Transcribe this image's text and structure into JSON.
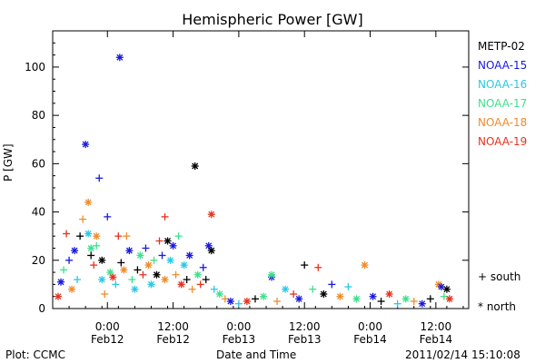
{
  "chart_data": {
    "type": "scatter",
    "title": "Hemispheric Power [GW]",
    "ylabel": "P [GW]",
    "xlabel": "Date and Time",
    "ylim": [
      0,
      115
    ],
    "xlim": [
      "2011-02-11T14:00",
      "2011-02-14T18:00"
    ],
    "y_ticks": [
      0,
      20,
      40,
      60,
      80,
      100
    ],
    "x_ticks": [
      {
        "time": "2011-02-12T00:00",
        "label1": "0:00",
        "label2": "Feb12"
      },
      {
        "time": "2011-02-12T12:00",
        "label1": "12:00",
        "label2": "Feb12"
      },
      {
        "time": "2011-02-13T00:00",
        "label1": "0:00",
        "label2": "Feb13"
      },
      {
        "time": "2011-02-13T12:00",
        "label1": "12:00",
        "label2": "Feb13"
      },
      {
        "time": "2011-02-14T00:00",
        "label1": "0:00",
        "label2": "Feb14"
      },
      {
        "time": "2011-02-14T12:00",
        "label1": "12:00",
        "label2": "Feb14"
      }
    ],
    "series": [
      {
        "name": "METP-02",
        "color": "#000000"
      },
      {
        "name": "NOAA-15",
        "color": "#1a1adc"
      },
      {
        "name": "NOAA-16",
        "color": "#2bc8e6"
      },
      {
        "name": "NOAA-17",
        "color": "#3ee08c"
      },
      {
        "name": "NOAA-18",
        "color": "#f08c2a"
      },
      {
        "name": "NOAA-19",
        "color": "#e8321e"
      }
    ],
    "markers": {
      "south": "+",
      "north": "*"
    },
    "marker_legend": {
      "south_label": "+ south",
      "north_label": "* north"
    },
    "points": [
      {
        "t": "2011-02-11T15:30",
        "v": 11,
        "s": 1,
        "m": "n"
      },
      {
        "t": "2011-02-11T15:00",
        "v": 5,
        "s": 5,
        "m": "n"
      },
      {
        "t": "2011-02-11T16:00",
        "v": 16,
        "s": 3,
        "m": "s"
      },
      {
        "t": "2011-02-11T16:30",
        "v": 31,
        "s": 5,
        "m": "s"
      },
      {
        "t": "2011-02-11T17:00",
        "v": 20,
        "s": 1,
        "m": "s"
      },
      {
        "t": "2011-02-11T17:30",
        "v": 8,
        "s": 4,
        "m": "n"
      },
      {
        "t": "2011-02-11T18:00",
        "v": 24,
        "s": 1,
        "m": "n"
      },
      {
        "t": "2011-02-11T18:30",
        "v": 12,
        "s": 2,
        "m": "s"
      },
      {
        "t": "2011-02-11T19:00",
        "v": 30,
        "s": 0,
        "m": "s"
      },
      {
        "t": "2011-02-11T19:30",
        "v": 37,
        "s": 4,
        "m": "s"
      },
      {
        "t": "2011-02-11T20:00",
        "v": 68,
        "s": 1,
        "m": "n"
      },
      {
        "t": "2011-02-11T20:30",
        "v": 44,
        "s": 4,
        "m": "n"
      },
      {
        "t": "2011-02-11T20:30",
        "v": 31,
        "s": 2,
        "m": "n"
      },
      {
        "t": "2011-02-11T21:00",
        "v": 25,
        "s": 3,
        "m": "n"
      },
      {
        "t": "2011-02-11T21:00",
        "v": 22,
        "s": 0,
        "m": "s"
      },
      {
        "t": "2011-02-11T21:30",
        "v": 18,
        "s": 5,
        "m": "s"
      },
      {
        "t": "2011-02-11T22:00",
        "v": 30,
        "s": 4,
        "m": "n"
      },
      {
        "t": "2011-02-11T22:00",
        "v": 26,
        "s": 3,
        "m": "s"
      },
      {
        "t": "2011-02-11T22:30",
        "v": 54,
        "s": 1,
        "m": "s"
      },
      {
        "t": "2011-02-11T23:00",
        "v": 20,
        "s": 0,
        "m": "n"
      },
      {
        "t": "2011-02-11T23:00",
        "v": 12,
        "s": 2,
        "m": "n"
      },
      {
        "t": "2011-02-11T23:30",
        "v": 6,
        "s": 4,
        "m": "s"
      },
      {
        "t": "2011-02-12T00:00",
        "v": 38,
        "s": 1,
        "m": "s"
      },
      {
        "t": "2011-02-12T00:30",
        "v": 15,
        "s": 3,
        "m": "n"
      },
      {
        "t": "2011-02-12T01:00",
        "v": 13,
        "s": 5,
        "m": "n"
      },
      {
        "t": "2011-02-12T01:30",
        "v": 10,
        "s": 2,
        "m": "s"
      },
      {
        "t": "2011-02-12T02:00",
        "v": 30,
        "s": 5,
        "m": "s"
      },
      {
        "t": "2011-02-12T02:15",
        "v": 104,
        "s": 1,
        "m": "n"
      },
      {
        "t": "2011-02-12T02:30",
        "v": 19,
        "s": 0,
        "m": "s"
      },
      {
        "t": "2011-02-12T03:00",
        "v": 16,
        "s": 4,
        "m": "n"
      },
      {
        "t": "2011-02-12T03:30",
        "v": 30,
        "s": 4,
        "m": "s"
      },
      {
        "t": "2011-02-12T04:00",
        "v": 24,
        "s": 1,
        "m": "n"
      },
      {
        "t": "2011-02-12T04:30",
        "v": 12,
        "s": 3,
        "m": "s"
      },
      {
        "t": "2011-02-12T05:00",
        "v": 8,
        "s": 2,
        "m": "n"
      },
      {
        "t": "2011-02-12T05:30",
        "v": 16,
        "s": 0,
        "m": "s"
      },
      {
        "t": "2011-02-12T06:00",
        "v": 22,
        "s": 3,
        "m": "n"
      },
      {
        "t": "2011-02-12T06:30",
        "v": 14,
        "s": 5,
        "m": "s"
      },
      {
        "t": "2011-02-12T07:00",
        "v": 25,
        "s": 1,
        "m": "s"
      },
      {
        "t": "2011-02-12T07:30",
        "v": 18,
        "s": 4,
        "m": "n"
      },
      {
        "t": "2011-02-12T08:00",
        "v": 10,
        "s": 2,
        "m": "n"
      },
      {
        "t": "2011-02-12T08:30",
        "v": 20,
        "s": 3,
        "m": "s"
      },
      {
        "t": "2011-02-12T09:00",
        "v": 14,
        "s": 0,
        "m": "n"
      },
      {
        "t": "2011-02-12T09:30",
        "v": 28,
        "s": 5,
        "m": "s"
      },
      {
        "t": "2011-02-12T10:00",
        "v": 22,
        "s": 1,
        "m": "s"
      },
      {
        "t": "2011-02-12T10:30",
        "v": 38,
        "s": 5,
        "m": "s"
      },
      {
        "t": "2011-02-12T10:30",
        "v": 12,
        "s": 4,
        "m": "n"
      },
      {
        "t": "2011-02-12T11:00",
        "v": 28,
        "s": 0,
        "m": "n"
      },
      {
        "t": "2011-02-12T11:30",
        "v": 20,
        "s": 2,
        "m": "n"
      },
      {
        "t": "2011-02-12T12:00",
        "v": 26,
        "s": 1,
        "m": "n"
      },
      {
        "t": "2011-02-12T12:30",
        "v": 14,
        "s": 4,
        "m": "s"
      },
      {
        "t": "2011-02-12T13:00",
        "v": 30,
        "s": 3,
        "m": "s"
      },
      {
        "t": "2011-02-12T13:30",
        "v": 10,
        "s": 5,
        "m": "n"
      },
      {
        "t": "2011-02-12T14:00",
        "v": 18,
        "s": 2,
        "m": "n"
      },
      {
        "t": "2011-02-12T14:30",
        "v": 12,
        "s": 0,
        "m": "s"
      },
      {
        "t": "2011-02-12T15:00",
        "v": 22,
        "s": 1,
        "m": "n"
      },
      {
        "t": "2011-02-12T15:30",
        "v": 8,
        "s": 4,
        "m": "s"
      },
      {
        "t": "2011-02-12T16:00",
        "v": 59,
        "s": 0,
        "m": "n"
      },
      {
        "t": "2011-02-12T16:30",
        "v": 14,
        "s": 3,
        "m": "n"
      },
      {
        "t": "2011-02-12T17:00",
        "v": 10,
        "s": 5,
        "m": "s"
      },
      {
        "t": "2011-02-12T17:30",
        "v": 17,
        "s": 1,
        "m": "s"
      },
      {
        "t": "2011-02-12T18:00",
        "v": 12,
        "s": 0,
        "m": "s"
      },
      {
        "t": "2011-02-12T18:30",
        "v": 26,
        "s": 1,
        "m": "n"
      },
      {
        "t": "2011-02-12T19:00",
        "v": 39,
        "s": 5,
        "m": "n"
      },
      {
        "t": "2011-02-12T19:00",
        "v": 24,
        "s": 0,
        "m": "n"
      },
      {
        "t": "2011-02-12T19:30",
        "v": 8,
        "s": 2,
        "m": "s"
      },
      {
        "t": "2011-02-12T20:30",
        "v": 6,
        "s": 3,
        "m": "n"
      },
      {
        "t": "2011-02-12T21:30",
        "v": 4,
        "s": 4,
        "m": "s"
      },
      {
        "t": "2011-02-12T22:30",
        "v": 3,
        "s": 1,
        "m": "n"
      },
      {
        "t": "2011-02-13T00:00",
        "v": 2,
        "s": 2,
        "m": "s"
      },
      {
        "t": "2011-02-13T01:30",
        "v": 3,
        "s": 5,
        "m": "n"
      },
      {
        "t": "2011-02-13T03:00",
        "v": 4,
        "s": 0,
        "m": "s"
      },
      {
        "t": "2011-02-13T04:30",
        "v": 5,
        "s": 3,
        "m": "n"
      },
      {
        "t": "2011-02-13T06:00",
        "v": 13,
        "s": 1,
        "m": "n"
      },
      {
        "t": "2011-02-13T06:00",
        "v": 14,
        "s": 3,
        "m": "n"
      },
      {
        "t": "2011-02-13T07:00",
        "v": 3,
        "s": 4,
        "m": "s"
      },
      {
        "t": "2011-02-13T08:30",
        "v": 8,
        "s": 2,
        "m": "n"
      },
      {
        "t": "2011-02-13T10:00",
        "v": 6,
        "s": 5,
        "m": "s"
      },
      {
        "t": "2011-02-13T11:00",
        "v": 4,
        "s": 1,
        "m": "n"
      },
      {
        "t": "2011-02-13T12:00",
        "v": 18,
        "s": 0,
        "m": "s"
      },
      {
        "t": "2011-02-13T13:30",
        "v": 8,
        "s": 3,
        "m": "s"
      },
      {
        "t": "2011-02-13T14:30",
        "v": 17,
        "s": 5,
        "m": "s"
      },
      {
        "t": "2011-02-13T15:30",
        "v": 6,
        "s": 0,
        "m": "n"
      },
      {
        "t": "2011-02-13T17:00",
        "v": 10,
        "s": 1,
        "m": "s"
      },
      {
        "t": "2011-02-13T18:30",
        "v": 5,
        "s": 4,
        "m": "n"
      },
      {
        "t": "2011-02-13T20:00",
        "v": 9,
        "s": 2,
        "m": "s"
      },
      {
        "t": "2011-02-13T21:30",
        "v": 4,
        "s": 3,
        "m": "n"
      },
      {
        "t": "2011-02-13T23:00",
        "v": 18,
        "s": 4,
        "m": "n"
      },
      {
        "t": "2011-02-14T00:30",
        "v": 5,
        "s": 1,
        "m": "n"
      },
      {
        "t": "2011-02-14T02:00",
        "v": 3,
        "s": 0,
        "m": "s"
      },
      {
        "t": "2011-02-14T03:30",
        "v": 6,
        "s": 5,
        "m": "n"
      },
      {
        "t": "2011-02-14T05:00",
        "v": 2,
        "s": 2,
        "m": "s"
      },
      {
        "t": "2011-02-14T06:30",
        "v": 4,
        "s": 3,
        "m": "n"
      },
      {
        "t": "2011-02-14T08:00",
        "v": 3,
        "s": 4,
        "m": "s"
      },
      {
        "t": "2011-02-14T09:30",
        "v": 2,
        "s": 1,
        "m": "n"
      },
      {
        "t": "2011-02-14T11:00",
        "v": 4,
        "s": 0,
        "m": "s"
      },
      {
        "t": "2011-02-14T12:30",
        "v": 10,
        "s": 4,
        "m": "n"
      },
      {
        "t": "2011-02-14T13:00",
        "v": 9,
        "s": 1,
        "m": "n"
      },
      {
        "t": "2011-02-14T13:30",
        "v": 5,
        "s": 3,
        "m": "s"
      },
      {
        "t": "2011-02-14T14:00",
        "v": 8,
        "s": 0,
        "m": "n"
      },
      {
        "t": "2011-02-14T14:30",
        "v": 4,
        "s": 5,
        "m": "n"
      }
    ]
  },
  "footer": {
    "plot_credit": "Plot: CCMC",
    "xlabel": "Date and Time",
    "timestamp": "2011/02/14 15:10:08"
  }
}
